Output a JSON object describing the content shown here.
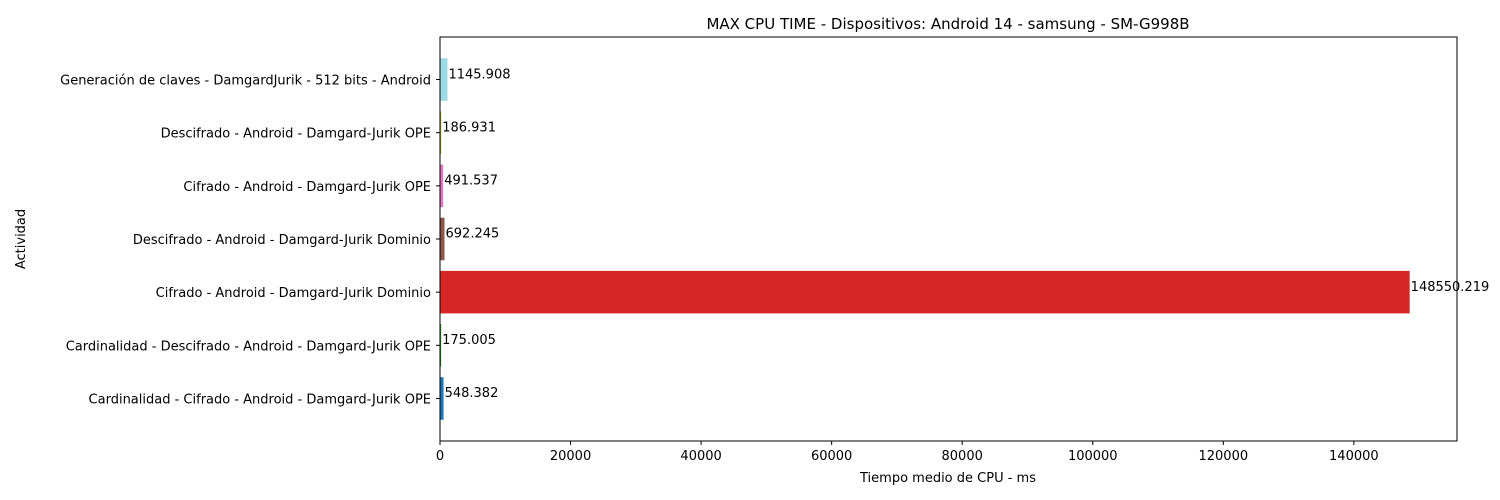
{
  "chart_data": {
    "type": "bar",
    "orientation": "horizontal",
    "title": "MAX CPU TIME - Dispositivos: Android 14 - samsung - SM-G998B",
    "xlabel": "Tiempo medio de CPU - ms",
    "ylabel": "Actividad",
    "xlim": [
      0,
      155800
    ],
    "x_ticks": [
      0,
      20000,
      40000,
      60000,
      80000,
      100000,
      120000,
      140000
    ],
    "x_tick_labels": [
      "0",
      "20000",
      "40000",
      "60000",
      "80000",
      "100000",
      "120000",
      "140000"
    ],
    "grid": false,
    "bars": [
      {
        "category": "Cardinalidad - Cifrado - Android - Damgard-Jurik OPE",
        "value": 548.382,
        "label": "548.382",
        "color": "#1f77b4"
      },
      {
        "category": "Cardinalidad - Descifrado - Android - Damgard-Jurik OPE",
        "value": 175.005,
        "label": "175.005",
        "color": "#2ca02c"
      },
      {
        "category": "Cifrado - Android - Damgard-Jurik Dominio",
        "value": 148550.219,
        "label": "148550.219",
        "color": "#d62728"
      },
      {
        "category": "Descifrado - Android - Damgard-Jurik Dominio",
        "value": 692.245,
        "label": "692.245",
        "color": "#8c564b"
      },
      {
        "category": "Cifrado - Android - Damgard-Jurik OPE",
        "value": 491.537,
        "label": "491.537",
        "color": "#e377c2"
      },
      {
        "category": "Descifrado - Android - Damgard-Jurik OPE",
        "value": 186.931,
        "label": "186.931",
        "color": "#bcbd22"
      },
      {
        "category": "Generación de claves - DamgardJurik - 512 bits - Android",
        "value": 1145.908,
        "label": "1145.908",
        "color": "#9edae5"
      }
    ]
  }
}
